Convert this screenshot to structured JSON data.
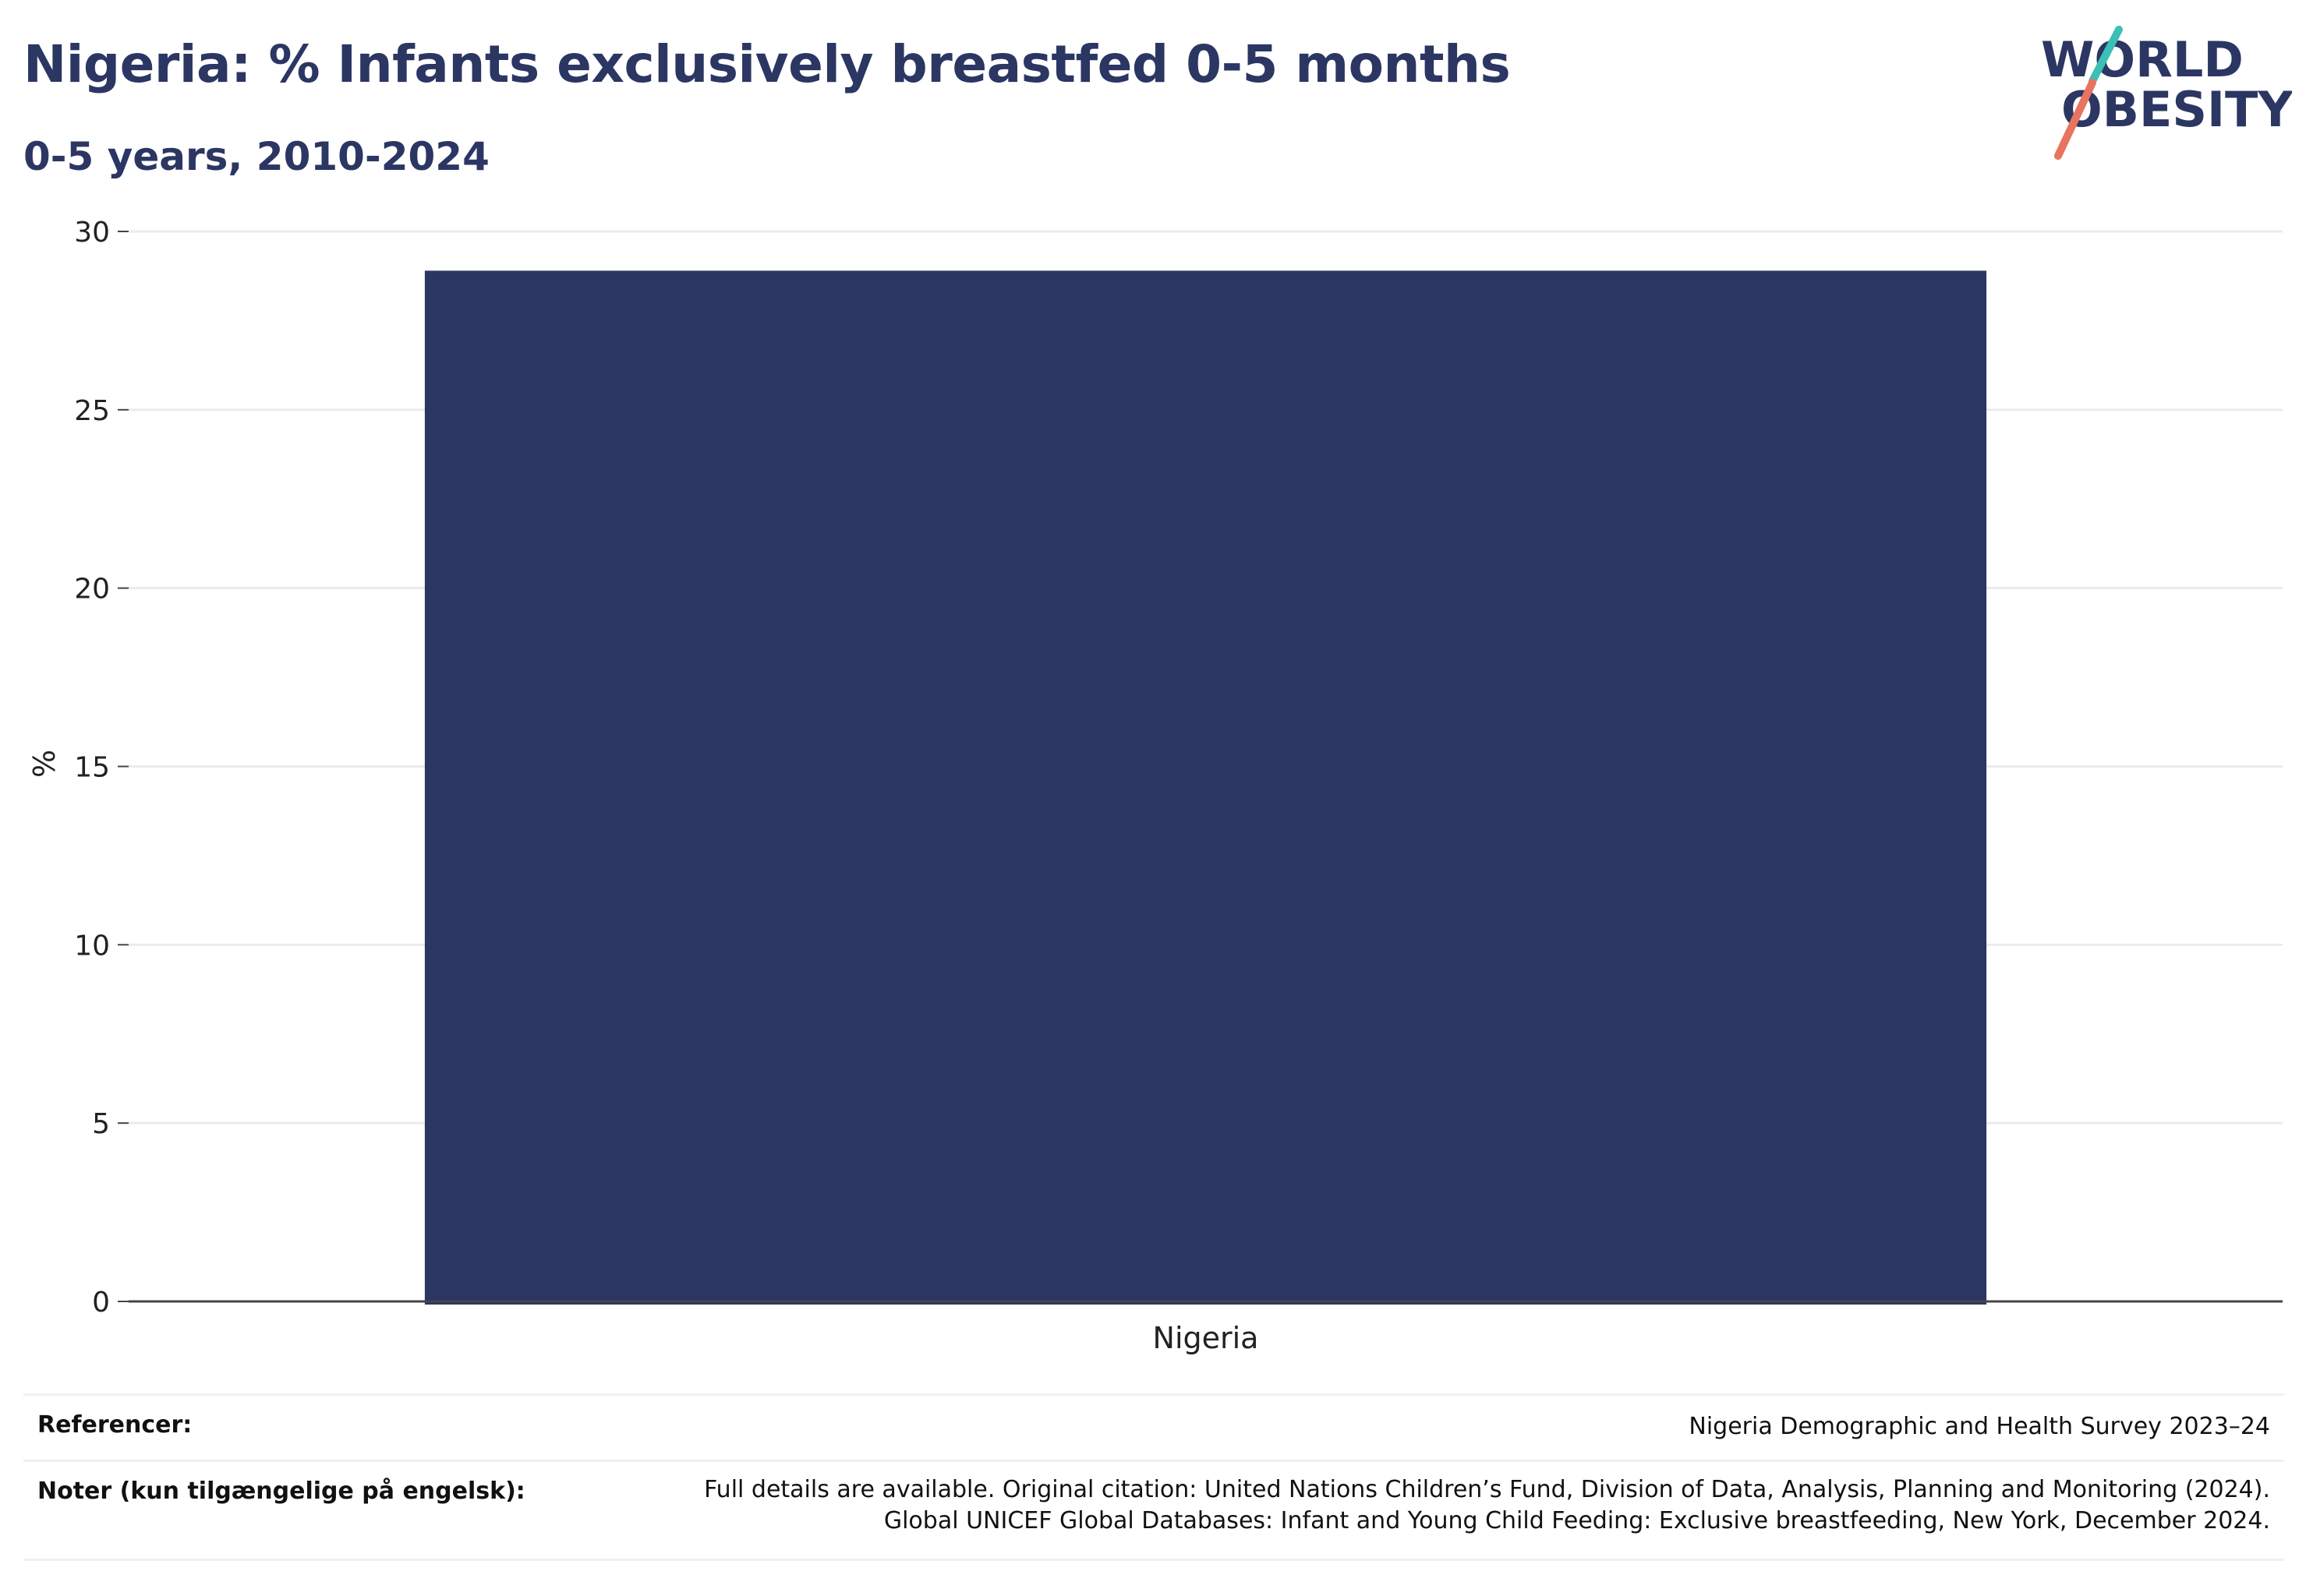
{
  "header": {
    "title": "Nigeria: % Infants exclusively breastfed 0-5 months",
    "subtitle": "0-5 years, 2010-2024"
  },
  "logo": {
    "line1": "WORLD",
    "line2": "OBESITY",
    "slash_colors": [
      "#3cbfb4",
      "#e8735f"
    ]
  },
  "colors": {
    "bar": "#2b3663",
    "title": "#2b3663",
    "grid": "#ebebeb",
    "axis": "#444444"
  },
  "chart_data": {
    "type": "bar",
    "categories": [
      "Nigeria"
    ],
    "values": [
      28.9
    ],
    "title": "Nigeria: % Infants exclusively breastfed 0-5 months",
    "subtitle": "0-5 years, 2010-2024",
    "xlabel": "",
    "ylabel": "%",
    "ylim": [
      0,
      30
    ],
    "yticks": [
      0,
      5,
      10,
      15,
      20,
      25,
      30
    ],
    "grid": true,
    "legend": "none"
  },
  "footer": {
    "references_label": "Referencer:",
    "references_value": "Nigeria Demographic and Health Survey 2023–24",
    "notes_label": "Noter (kun tilgængelige på engelsk):",
    "notes_line1": "Full details are available. Original citation: United Nations Children’s Fund, Division of Data, Analysis, Planning and Monitoring (2024).",
    "notes_line2": "Global UNICEF Global Databases: Infant and Young Child Feeding: Exclusive breastfeeding, New York, December 2024."
  }
}
